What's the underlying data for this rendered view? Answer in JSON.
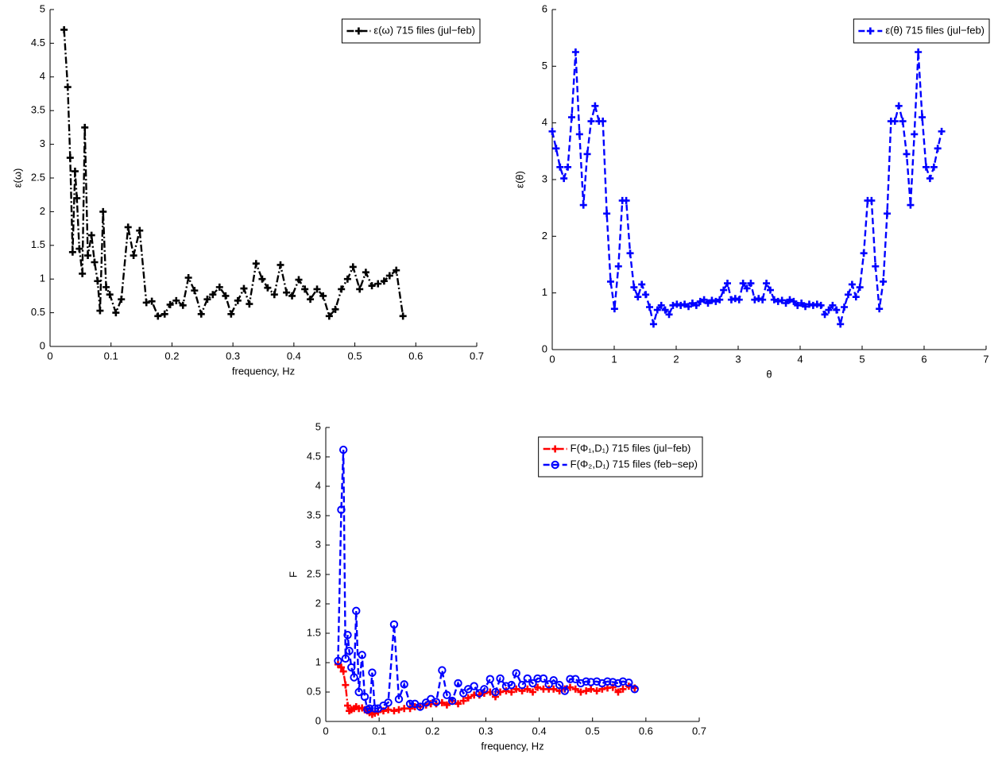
{
  "chart_data": [
    {
      "type": "line",
      "xlabel": "frequency, Hz",
      "ylabel": "ε(ω)",
      "legend": "northeast",
      "xlim": [
        0,
        0.7
      ],
      "xticks": [
        0,
        0.1,
        0.2,
        0.3,
        0.4,
        0.5,
        0.6,
        0.7
      ],
      "ylim": [
        0,
        5
      ],
      "yticks": [
        0,
        0.5,
        1,
        1.5,
        2,
        2.5,
        3,
        3.5,
        4,
        4.5,
        5
      ],
      "x": [
        0.023,
        0.029,
        0.033,
        0.037,
        0.041,
        0.044,
        0.048,
        0.053,
        0.057,
        0.062,
        0.068,
        0.073,
        0.078,
        0.082,
        0.087,
        0.092,
        0.098,
        0.108,
        0.117,
        0.128,
        0.137,
        0.147,
        0.158,
        0.167,
        0.177,
        0.188,
        0.197,
        0.207,
        0.218,
        0.227,
        0.237,
        0.248,
        0.258,
        0.267,
        0.278,
        0.288,
        0.297,
        0.308,
        0.318,
        0.327,
        0.338,
        0.348,
        0.357,
        0.368,
        0.378,
        0.388,
        0.397,
        0.408,
        0.418,
        0.427,
        0.438,
        0.448,
        0.458,
        0.468,
        0.478,
        0.488,
        0.497,
        0.508,
        0.518,
        0.528,
        0.538,
        0.548,
        0.557,
        0.568,
        0.579
      ],
      "series": [
        {
          "name": "ε(ω) 715 files (jul−feb)",
          "color": "#000000",
          "linestyle": "-.",
          "marker": "+",
          "values": [
            4.7,
            3.85,
            2.8,
            1.4,
            2.6,
            2.2,
            1.45,
            1.08,
            3.25,
            1.35,
            1.65,
            1.25,
            0.97,
            0.53,
            2.0,
            0.88,
            0.77,
            0.5,
            0.7,
            1.77,
            1.35,
            1.72,
            0.65,
            0.67,
            0.45,
            0.48,
            0.62,
            0.68,
            0.61,
            1.02,
            0.83,
            0.48,
            0.7,
            0.77,
            0.88,
            0.75,
            0.48,
            0.68,
            0.86,
            0.63,
            1.23,
            1.0,
            0.87,
            0.77,
            1.21,
            0.8,
            0.75,
            0.99,
            0.85,
            0.7,
            0.85,
            0.75,
            0.45,
            0.55,
            0.85,
            1.0,
            1.18,
            0.85,
            1.1,
            0.9,
            0.93,
            0.97,
            1.05,
            1.13,
            0.45
          ]
        }
      ]
    },
    {
      "type": "line",
      "xlabel": "θ",
      "ylabel": "ε(θ)",
      "legend": "northeast",
      "xlim": [
        0,
        7
      ],
      "xticks": [
        0,
        1,
        2,
        3,
        4,
        5,
        6,
        7
      ],
      "ylim": [
        0,
        6
      ],
      "yticks": [
        0,
        1,
        2,
        3,
        4,
        5,
        6
      ],
      "x": [
        0,
        0.063,
        0.126,
        0.188,
        0.251,
        0.314,
        0.377,
        0.44,
        0.503,
        0.565,
        0.628,
        0.691,
        0.754,
        0.817,
        0.88,
        0.942,
        1.005,
        1.068,
        1.131,
        1.194,
        1.257,
        1.319,
        1.382,
        1.445,
        1.508,
        1.571,
        1.634,
        1.696,
        1.759,
        1.822,
        1.885,
        1.948,
        2.011,
        2.073,
        2.136,
        2.199,
        2.262,
        2.325,
        2.388,
        2.45,
        2.513,
        2.576,
        2.639,
        2.702,
        2.765,
        2.827,
        2.89,
        2.953,
        3.016,
        3.079,
        3.142,
        3.204,
        3.267,
        3.33,
        3.393,
        3.456,
        3.519,
        3.581,
        3.644,
        3.707,
        3.77,
        3.833,
        3.896,
        3.958,
        4.021,
        4.084,
        4.147,
        4.21,
        4.273,
        4.335,
        4.398,
        4.461,
        4.524,
        4.587,
        4.65,
        4.712,
        4.775,
        4.838,
        4.901,
        4.964,
        5.027,
        5.089,
        5.152,
        5.215,
        5.278,
        5.341,
        5.404,
        5.466,
        5.529,
        5.592,
        5.655,
        5.718,
        5.781,
        5.843,
        5.906,
        5.969,
        6.032,
        6.095,
        6.158,
        6.22,
        6.283
      ],
      "series": [
        {
          "name": "ε(θ) 715 files (jul−feb)",
          "color": "#0000ff",
          "linestyle": "--",
          "marker": "+",
          "values": [
            3.85,
            3.55,
            3.22,
            3.02,
            3.22,
            4.1,
            5.25,
            3.8,
            2.55,
            3.45,
            4.03,
            4.3,
            4.03,
            4.03,
            2.4,
            1.2,
            0.72,
            1.47,
            2.63,
            2.63,
            1.7,
            1.1,
            0.93,
            1.15,
            0.97,
            0.75,
            0.45,
            0.7,
            0.78,
            0.7,
            0.62,
            0.78,
            0.8,
            0.78,
            0.8,
            0.76,
            0.82,
            0.78,
            0.85,
            0.88,
            0.82,
            0.87,
            0.85,
            0.88,
            1.05,
            1.17,
            0.88,
            0.9,
            0.88,
            1.17,
            1.08,
            1.17,
            0.88,
            0.9,
            0.88,
            1.17,
            1.05,
            0.88,
            0.85,
            0.87,
            0.82,
            0.88,
            0.85,
            0.78,
            0.82,
            0.76,
            0.8,
            0.78,
            0.8,
            0.78,
            0.62,
            0.7,
            0.78,
            0.7,
            0.45,
            0.75,
            0.97,
            1.15,
            0.93,
            1.1,
            1.7,
            2.63,
            2.63,
            1.47,
            0.72,
            1.2,
            2.4,
            4.03,
            4.03,
            4.3,
            4.03,
            3.45,
            2.55,
            3.8,
            5.25,
            4.1,
            3.22,
            3.02,
            3.22,
            3.55,
            3.85
          ]
        }
      ]
    },
    {
      "type": "line",
      "xlabel": "frequency, Hz",
      "ylabel": "F",
      "legend": "northeast",
      "xlim": [
        0,
        0.7
      ],
      "xticks": [
        0,
        0.1,
        0.2,
        0.3,
        0.4,
        0.5,
        0.6,
        0.7
      ],
      "ylim": [
        0,
        5
      ],
      "yticks": [
        0,
        0.5,
        1,
        1.5,
        2,
        2.5,
        3,
        3.5,
        4,
        4.5,
        5
      ],
      "x": [
        0.023,
        0.029,
        0.033,
        0.037,
        0.041,
        0.044,
        0.048,
        0.053,
        0.057,
        0.062,
        0.068,
        0.073,
        0.078,
        0.082,
        0.087,
        0.092,
        0.098,
        0.108,
        0.117,
        0.128,
        0.137,
        0.147,
        0.158,
        0.167,
        0.177,
        0.188,
        0.197,
        0.207,
        0.218,
        0.227,
        0.237,
        0.248,
        0.258,
        0.267,
        0.278,
        0.288,
        0.297,
        0.308,
        0.318,
        0.327,
        0.338,
        0.348,
        0.357,
        0.368,
        0.378,
        0.388,
        0.397,
        0.408,
        0.418,
        0.427,
        0.438,
        0.448,
        0.458,
        0.468,
        0.478,
        0.488,
        0.497,
        0.508,
        0.518,
        0.528,
        0.538,
        0.548,
        0.557,
        0.568,
        0.579
      ],
      "series": [
        {
          "name": "F(Φ₁,D₁) 715 files (jul−feb)",
          "color": "#ff0000",
          "linestyle": "-.",
          "marker": "+",
          "values": [
            0.97,
            0.92,
            0.85,
            0.62,
            0.27,
            0.18,
            0.2,
            0.22,
            0.25,
            0.22,
            0.23,
            0.2,
            0.18,
            0.15,
            0.12,
            0.14,
            0.16,
            0.18,
            0.2,
            0.18,
            0.2,
            0.22,
            0.22,
            0.25,
            0.25,
            0.28,
            0.3,
            0.3,
            0.32,
            0.28,
            0.35,
            0.3,
            0.35,
            0.4,
            0.45,
            0.45,
            0.48,
            0.5,
            0.42,
            0.5,
            0.52,
            0.5,
            0.55,
            0.52,
            0.55,
            0.5,
            0.58,
            0.55,
            0.55,
            0.55,
            0.52,
            0.55,
            0.58,
            0.55,
            0.5,
            0.52,
            0.55,
            0.52,
            0.55,
            0.57,
            0.58,
            0.5,
            0.55,
            0.6,
            0.57
          ]
        },
        {
          "name": "F(Φ₂,D₁) 715 files (feb−sep)",
          "color": "#0000ff",
          "linestyle": "--",
          "marker": "o",
          "values": [
            1.03,
            3.6,
            4.62,
            1.07,
            1.47,
            1.2,
            0.92,
            0.75,
            1.88,
            0.5,
            1.13,
            0.42,
            0.2,
            0.22,
            0.83,
            0.22,
            0.22,
            0.27,
            0.32,
            1.65,
            0.38,
            0.63,
            0.3,
            0.3,
            0.25,
            0.32,
            0.38,
            0.33,
            0.87,
            0.45,
            0.35,
            0.65,
            0.48,
            0.55,
            0.6,
            0.48,
            0.55,
            0.72,
            0.5,
            0.73,
            0.6,
            0.62,
            0.82,
            0.62,
            0.73,
            0.65,
            0.73,
            0.73,
            0.63,
            0.7,
            0.62,
            0.52,
            0.72,
            0.72,
            0.65,
            0.68,
            0.67,
            0.68,
            0.65,
            0.68,
            0.67,
            0.65,
            0.68,
            0.66,
            0.55
          ]
        }
      ]
    }
  ]
}
